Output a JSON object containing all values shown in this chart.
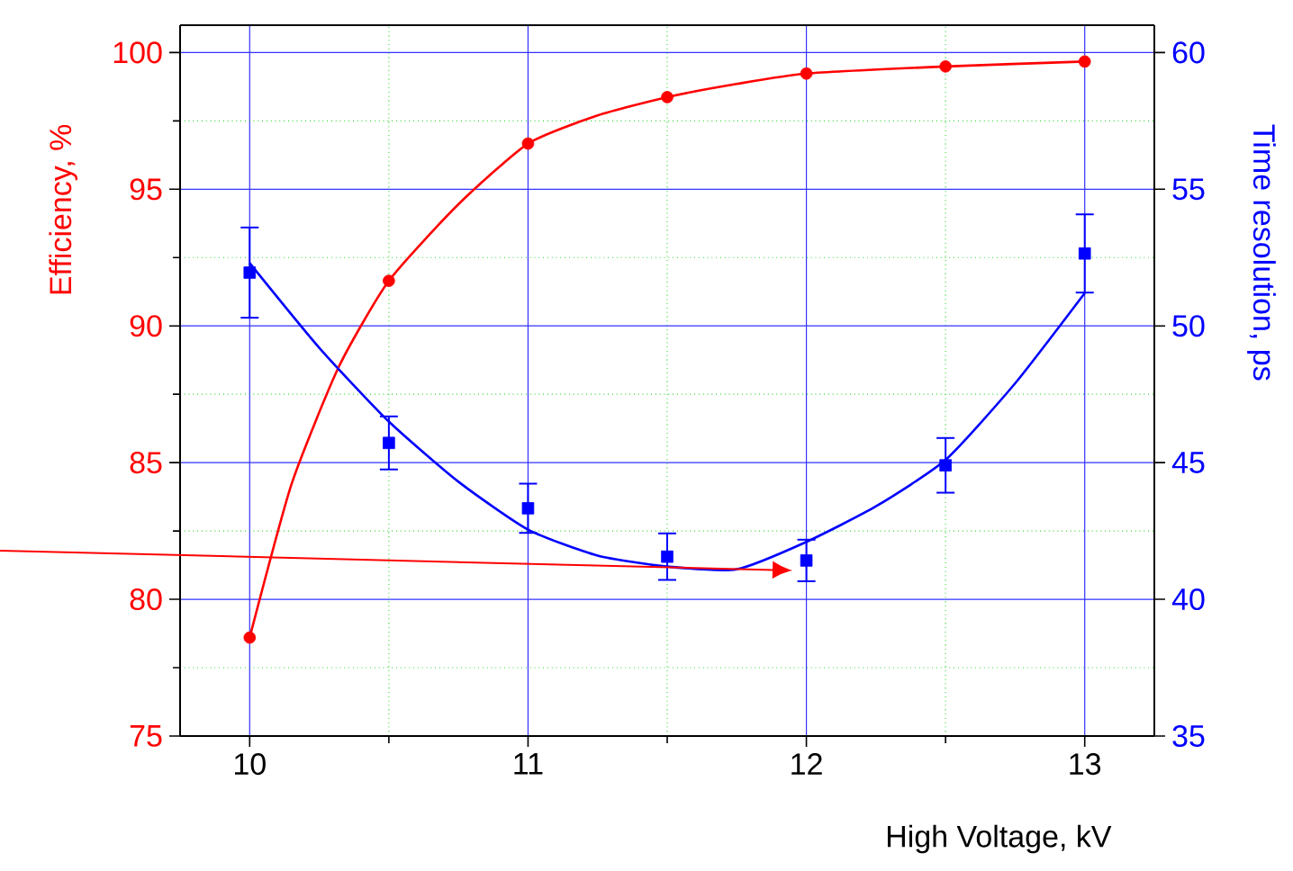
{
  "chart_data": {
    "type": "scatter",
    "xlabel": "High Voltage, kV",
    "ylabel": "Efficiency, %",
    "y2label": "Time resolution, ps",
    "xlim": [
      9.75,
      13.25
    ],
    "xticks": [
      10,
      {
        "value": 10.5,
        "label": null
      },
      11,
      {
        "value": 11.5,
        "label": null
      },
      12,
      {
        "value": 12.5,
        "label": null
      },
      13
    ],
    "ylim": [
      75,
      101
    ],
    "yticks": [
      75,
      {
        "value": 77.5,
        "label": null
      },
      80,
      {
        "value": 82.5,
        "label": null
      },
      85,
      {
        "value": 87.5,
        "label": null
      },
      90,
      {
        "value": 92.5,
        "label": null
      },
      95,
      {
        "value": 97.5,
        "label": null
      },
      100
    ],
    "y2lim": [
      35,
      61
    ],
    "y2ticks": [
      35,
      40,
      45,
      50,
      55,
      60
    ],
    "grid": true,
    "series": [
      {
        "color": "#ff0000",
        "marker": "circle",
        "x": [
          10,
          10.5,
          11,
          11.5,
          12,
          12.5,
          13
        ],
        "values": [
          78.6,
          91.65,
          96.67,
          98.37,
          99.23,
          99.49,
          99.67
        ]
      },
      {
        "type": "line",
        "color": "#ff0000",
        "marker": "none",
        "x": [
          10,
          10.15,
          10.32,
          10.5,
          10.75,
          11,
          11.25,
          11.5,
          11.75,
          12,
          12.5,
          13
        ],
        "values": [
          78.6,
          84.2,
          88.5,
          91.65,
          94.45,
          96.67,
          97.7,
          98.37,
          98.85,
          99.23,
          99.49,
          99.67
        ]
      },
      {
        "color": "#0000ff",
        "marker": "square",
        "axis": "y2",
        "x": [
          10,
          10.5,
          11,
          11.5,
          12,
          12.5,
          13
        ],
        "values": [
          51.95,
          45.72,
          43.33,
          41.56,
          41.42,
          44.9,
          52.65
        ],
        "errors": [
          1.65,
          0.97,
          0.9,
          0.85,
          0.76,
          1.0,
          1.43
        ]
      },
      {
        "type": "line",
        "color": "#0000ff",
        "marker": "none",
        "axis": "y2",
        "x": [
          10,
          10.25,
          10.5,
          10.75,
          11,
          11.25,
          11.5,
          11.75,
          12,
          12.25,
          12.5,
          12.75,
          13
        ],
        "values": [
          52.3,
          49.2,
          46.5,
          44.3,
          42.55,
          41.6,
          41.2,
          41.1,
          42.1,
          43.4,
          45.1,
          47.9,
          51.2
        ]
      }
    ]
  }
}
